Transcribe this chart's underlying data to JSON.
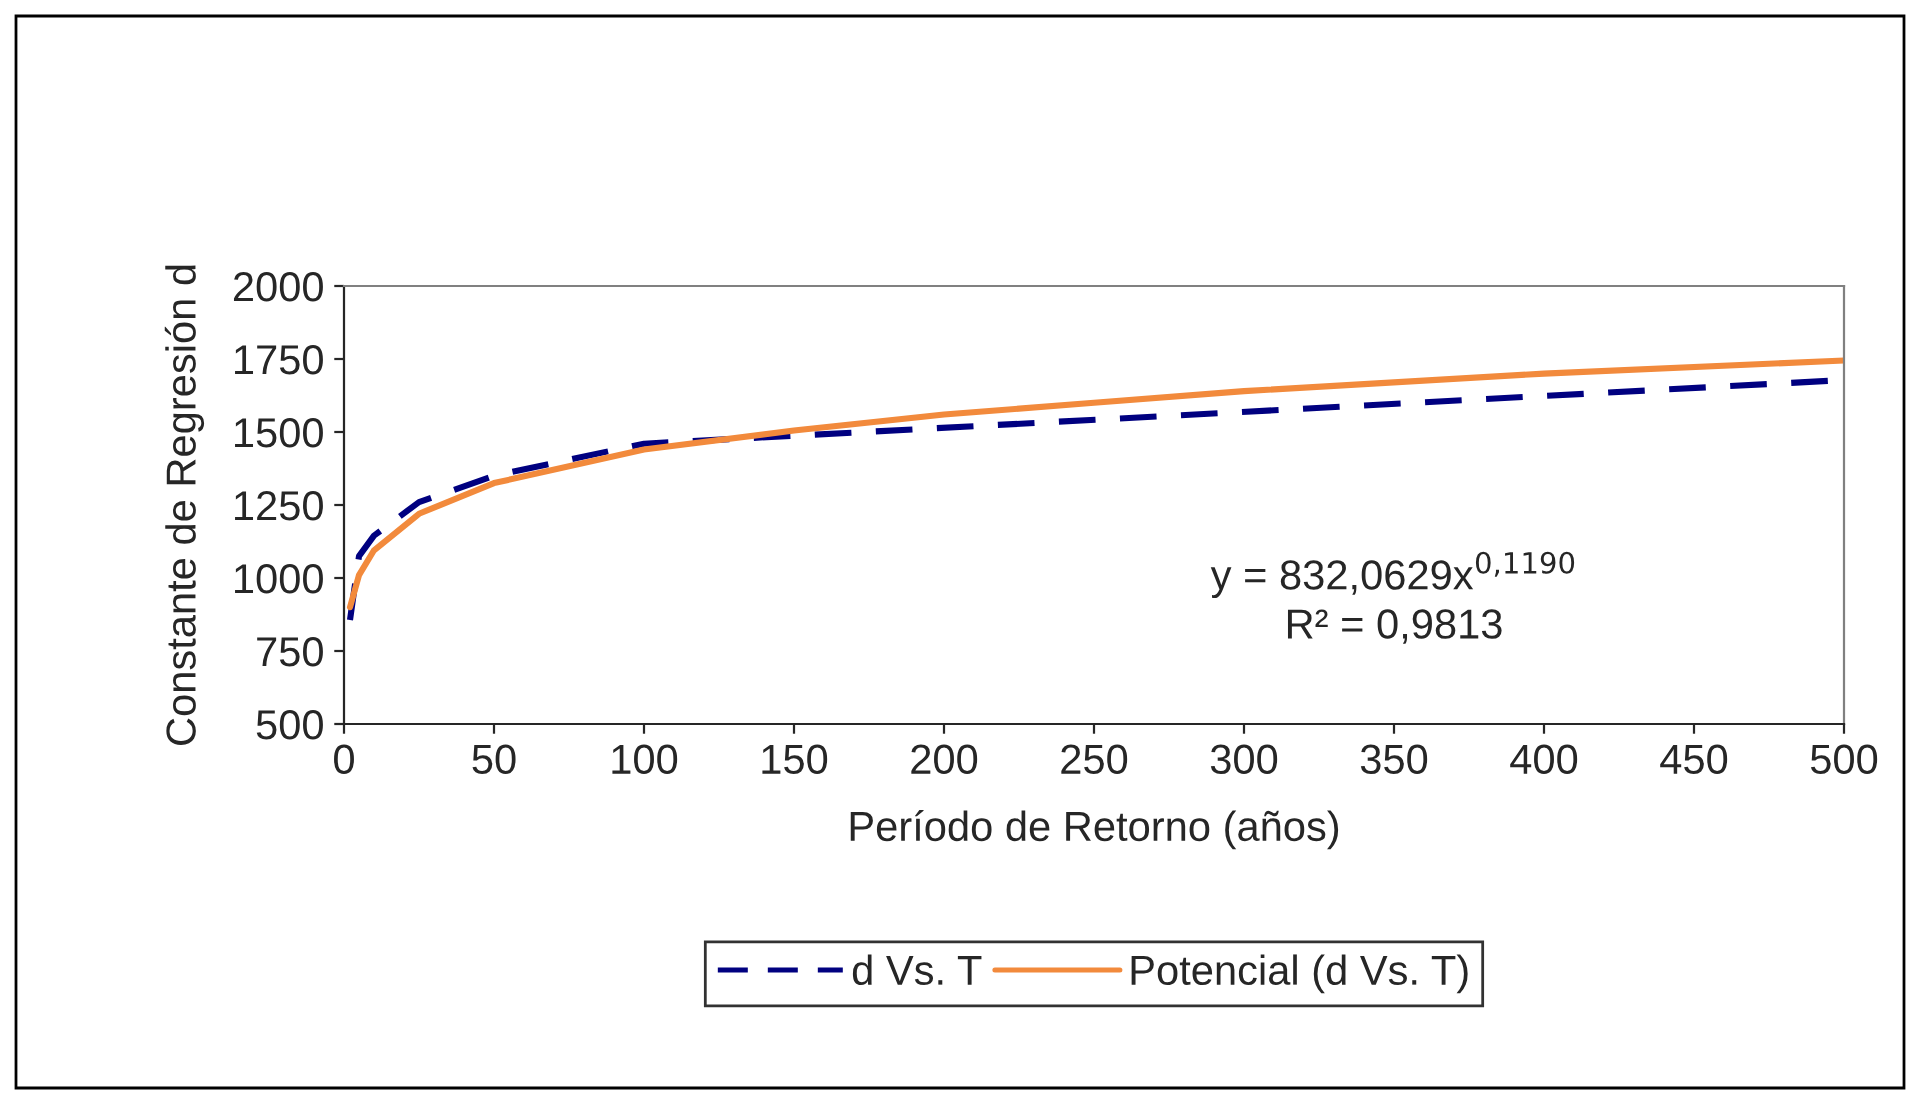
{
  "chart_data": {
    "type": "line",
    "xlabel": "Período de Retorno (años)",
    "ylabel": "Constante de Regresión d",
    "xlim": [
      0,
      500
    ],
    "xticks": [
      0,
      50,
      100,
      150,
      200,
      250,
      300,
      350,
      400,
      450,
      500
    ],
    "ylim": [
      500,
      2000
    ],
    "yticks": [
      500,
      750,
      1000,
      1250,
      1500,
      1750,
      2000
    ],
    "series": [
      {
        "name": "d Vs. T",
        "color": "#000080",
        "line_style": "dashed",
        "x": [
          2,
          5,
          10,
          25,
          50,
          100,
          500
        ],
        "values": [
          856,
          1075,
          1145,
          1260,
          1350,
          1460,
          1678
        ]
      },
      {
        "name": "Potencial (d Vs. T)",
        "color": "#f28a3c",
        "line_style": "solid",
        "x": [
          2,
          5,
          10,
          25,
          50,
          100,
          150,
          200,
          250,
          300,
          400,
          500
        ],
        "values": [
          900,
          1010,
          1095,
          1220,
          1325,
          1440,
          1505,
          1560,
          1600,
          1640,
          1700,
          1745
        ]
      }
    ],
    "annotations": [
      "y = 832,0629x$^{0,1190}$",
      "R² = 0,9813"
    ],
    "legend": "bottom",
    "grid": false
  }
}
